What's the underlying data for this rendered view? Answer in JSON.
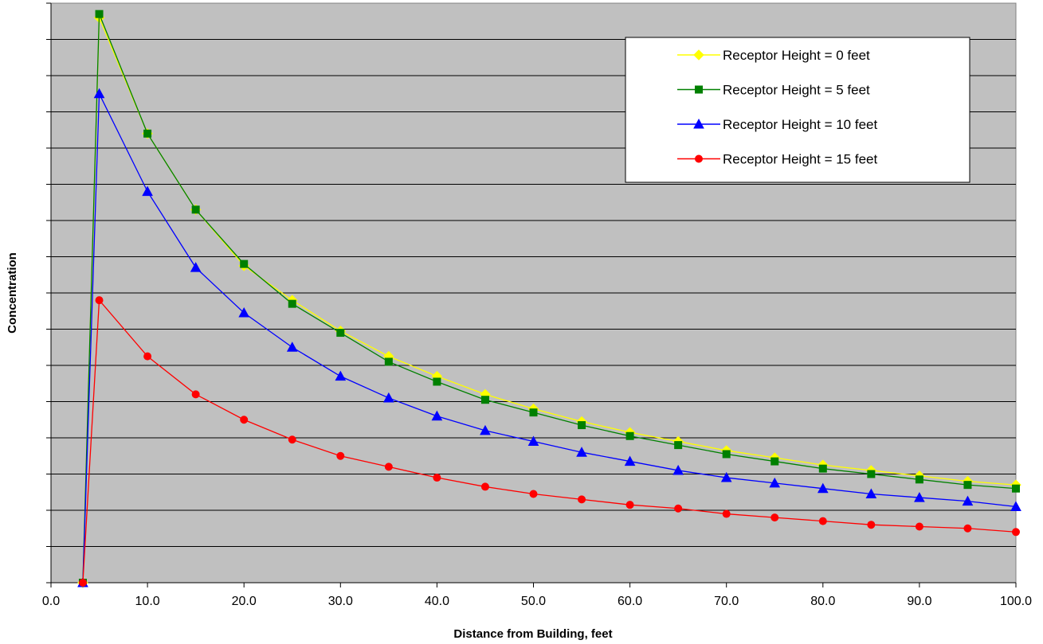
{
  "chart_data": {
    "type": "line",
    "title": "",
    "xlabel": "Distance from Building, feet",
    "ylabel": "Concentration",
    "xlim": [
      0,
      100
    ],
    "ylim": [
      0,
      16
    ],
    "x_ticks": [
      "0.0",
      "10.0",
      "20.0",
      "30.0",
      "40.0",
      "50.0",
      "60.0",
      "70.0",
      "80.0",
      "90.0",
      "100.0"
    ],
    "y_tick_labels_shown": false,
    "grid": "horizontal",
    "legend": "top-right",
    "plot_background": "#c0c0c0",
    "x": [
      3.3,
      5,
      10,
      15,
      20,
      25,
      30,
      35,
      40,
      45,
      50,
      55,
      60,
      65,
      70,
      75,
      80,
      85,
      90,
      95,
      100
    ],
    "series": [
      {
        "name": "Receptor Height = 0 feet",
        "color": "#ffff00",
        "marker": "diamond",
        "values": [
          0.0,
          15.6,
          12.4,
          10.3,
          8.75,
          7.8,
          6.95,
          6.25,
          5.7,
          5.2,
          4.8,
          4.45,
          4.15,
          3.9,
          3.65,
          3.45,
          3.25,
          3.1,
          2.95,
          2.8,
          2.7
        ]
      },
      {
        "name": "Receptor Height = 5 feet",
        "color": "#008000",
        "marker": "square",
        "values": [
          0.0,
          15.7,
          12.4,
          10.3,
          8.8,
          7.7,
          6.9,
          6.1,
          5.55,
          5.05,
          4.7,
          4.35,
          4.05,
          3.8,
          3.55,
          3.35,
          3.15,
          3.0,
          2.85,
          2.7,
          2.6
        ]
      },
      {
        "name": "Receptor Height = 10 feet",
        "color": "#0000ff",
        "marker": "triangle",
        "values": [
          0.0,
          13.5,
          10.8,
          8.7,
          7.45,
          6.5,
          5.7,
          5.1,
          4.6,
          4.2,
          3.9,
          3.6,
          3.35,
          3.1,
          2.9,
          2.75,
          2.6,
          2.45,
          2.35,
          2.25,
          2.1
        ]
      },
      {
        "name": "Receptor Height = 15 feet",
        "color": "#ff0000",
        "marker": "circle",
        "values": [
          0.0,
          7.8,
          6.25,
          5.2,
          4.5,
          3.95,
          3.5,
          3.2,
          2.9,
          2.65,
          2.45,
          2.3,
          2.15,
          2.05,
          1.9,
          1.8,
          1.7,
          1.6,
          1.55,
          1.5,
          1.4
        ]
      }
    ]
  }
}
